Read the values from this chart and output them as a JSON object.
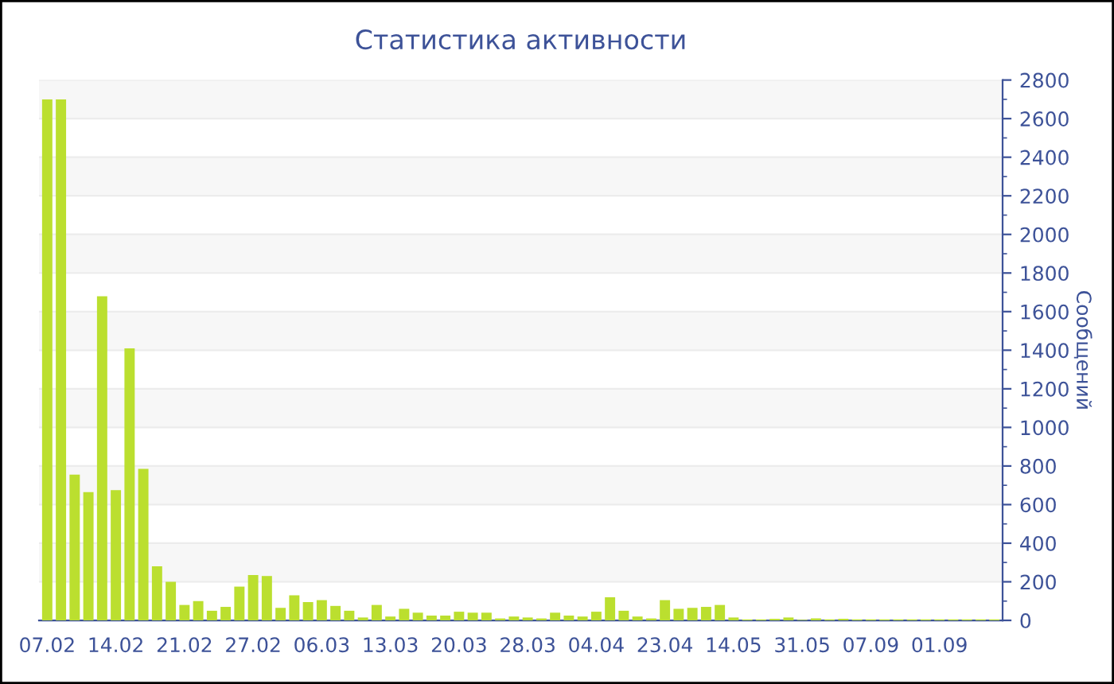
{
  "chart_data": {
    "type": "bar",
    "title": "Статистика активности",
    "ylabel": "Сообщений",
    "categories": [
      "07.02",
      null,
      null,
      null,
      null,
      "14.02",
      null,
      null,
      null,
      null,
      "21.02",
      null,
      null,
      null,
      null,
      "27.02",
      null,
      null,
      null,
      null,
      "06.03",
      null,
      null,
      null,
      null,
      "13.03",
      null,
      null,
      null,
      null,
      "20.03",
      null,
      null,
      null,
      null,
      "28.03",
      null,
      null,
      null,
      null,
      "04.04",
      null,
      null,
      null,
      null,
      "23.04",
      null,
      null,
      null,
      null,
      "14.05",
      null,
      null,
      null,
      null,
      "31.05",
      null,
      null,
      null,
      null,
      "07.09",
      null,
      null,
      null,
      null,
      "01.09",
      null,
      null,
      null,
      null
    ],
    "values": [
      2700,
      2700,
      755,
      665,
      1680,
      675,
      1410,
      785,
      280,
      200,
      80,
      100,
      50,
      70,
      175,
      235,
      230,
      65,
      130,
      95,
      105,
      75,
      50,
      15,
      80,
      20,
      60,
      40,
      25,
      25,
      45,
      40,
      40,
      10,
      20,
      15,
      10,
      40,
      25,
      20,
      45,
      120,
      50,
      20,
      10,
      105,
      60,
      65,
      70,
      80,
      15,
      5,
      5,
      8,
      15,
      3,
      10,
      5,
      8,
      5,
      5,
      5,
      5,
      5,
      5,
      5,
      5,
      5,
      5,
      5
    ],
    "color": "#bbdf2f",
    "ylim": [
      0,
      2800
    ],
    "yticks": [
      0,
      200,
      400,
      600,
      800,
      1000,
      1200,
      1400,
      1600,
      1800,
      2000,
      2200,
      2400,
      2600,
      2800
    ],
    "grid": "y"
  }
}
